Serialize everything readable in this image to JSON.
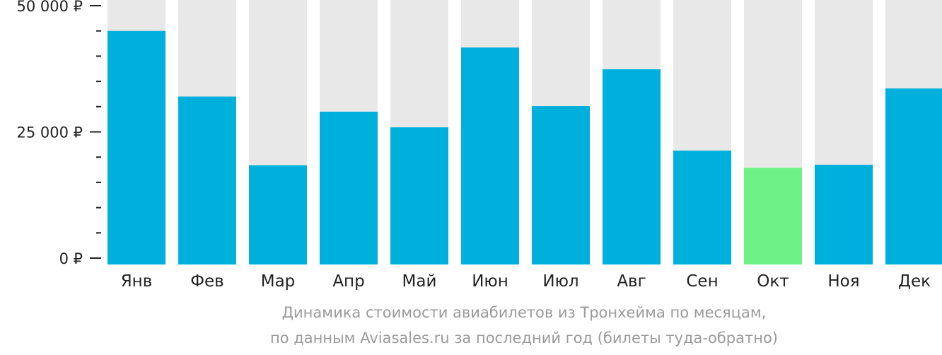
{
  "chart_data": {
    "type": "bar",
    "categories": [
      "Янв",
      "Фев",
      "Мар",
      "Апр",
      "Май",
      "Июн",
      "Июл",
      "Авг",
      "Сен",
      "Окт",
      "Ноя",
      "Дек"
    ],
    "values": [
      45000,
      32000,
      18400,
      29000,
      25900,
      41700,
      30100,
      37400,
      21300,
      17900,
      18500,
      33600
    ],
    "highlight_index": 9,
    "ylim": [
      0,
      50000
    ],
    "yticks": [
      {
        "value": 0,
        "label": "0 ₽"
      },
      {
        "value": 25000,
        "label": "25 000 ₽"
      },
      {
        "value": 50000,
        "label": "50 000 ₽"
      }
    ],
    "minor_tick_step": 5000,
    "colors": {
      "bar": "#00b0dc",
      "highlight": "#6ef287",
      "background_bar": "#e8e8e8",
      "axis": "#222222"
    }
  },
  "caption": {
    "line1": "Динамика стоимости авиабилетов из Тронхейма по месяцам,",
    "line2": "по данным Aviasales.ru за последний год (билеты туда-обратно)"
  }
}
